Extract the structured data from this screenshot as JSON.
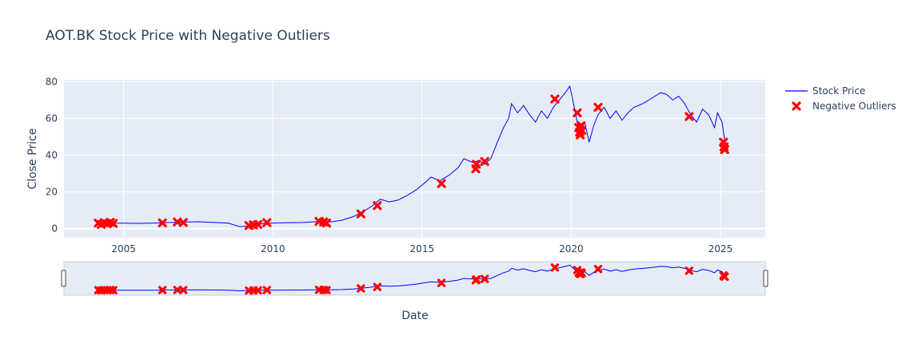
{
  "chart_data": {
    "type": "line",
    "title": "AOT.BK Stock Price with Negative Outliers",
    "xlabel": "Date",
    "ylabel": "Close Price",
    "x_range": [
      2003.0,
      2026.5
    ],
    "ylim": [
      -5,
      81
    ],
    "x_ticks": [
      {
        "value": 2005,
        "label": "2005"
      },
      {
        "value": 2010,
        "label": "2010"
      },
      {
        "value": 2015,
        "label": "2015"
      },
      {
        "value": 2020,
        "label": "2020"
      },
      {
        "value": 2025,
        "label": "2025"
      }
    ],
    "y_ticks": [
      {
        "value": 0,
        "label": "0"
      },
      {
        "value": 20,
        "label": "20"
      },
      {
        "value": 40,
        "label": "40"
      },
      {
        "value": 60,
        "label": "60"
      },
      {
        "value": 80,
        "label": "80"
      }
    ],
    "grid": true,
    "legend_position": "top-right",
    "rangeslider": true,
    "series": [
      {
        "name": "Stock Price",
        "mode": "line",
        "color": "#0000ff",
        "points": [
          [
            2004.1,
            3.2
          ],
          [
            2004.5,
            3.0
          ],
          [
            2005.0,
            2.9
          ],
          [
            2005.5,
            2.8
          ],
          [
            2006.0,
            3.0
          ],
          [
            2006.5,
            3.3
          ],
          [
            2007.0,
            3.5
          ],
          [
            2007.5,
            3.7
          ],
          [
            2008.0,
            3.4
          ],
          [
            2008.5,
            3.0
          ],
          [
            2008.9,
            1.0
          ],
          [
            2009.3,
            1.6
          ],
          [
            2009.7,
            2.8
          ],
          [
            2010.0,
            3.0
          ],
          [
            2010.5,
            3.2
          ],
          [
            2011.0,
            3.3
          ],
          [
            2011.5,
            3.8
          ],
          [
            2011.9,
            3.5
          ],
          [
            2012.3,
            4.5
          ],
          [
            2012.7,
            6.5
          ],
          [
            2013.0,
            9.0
          ],
          [
            2013.3,
            12.0
          ],
          [
            2013.6,
            16.0
          ],
          [
            2013.9,
            14.5
          ],
          [
            2014.2,
            15.5
          ],
          [
            2014.5,
            18.0
          ],
          [
            2014.8,
            21.0
          ],
          [
            2015.1,
            25.0
          ],
          [
            2015.3,
            28.0
          ],
          [
            2015.6,
            26.0
          ],
          [
            2015.9,
            29.0
          ],
          [
            2016.2,
            33.0
          ],
          [
            2016.4,
            38.0
          ],
          [
            2016.7,
            36.0
          ],
          [
            2016.9,
            37.0
          ],
          [
            2017.1,
            35.0
          ],
          [
            2017.3,
            38.0
          ],
          [
            2017.5,
            46.0
          ],
          [
            2017.7,
            54.0
          ],
          [
            2017.9,
            60.0
          ],
          [
            2018.0,
            68.0
          ],
          [
            2018.2,
            63.0
          ],
          [
            2018.4,
            67.0
          ],
          [
            2018.6,
            62.0
          ],
          [
            2018.8,
            58.0
          ],
          [
            2019.0,
            64.0
          ],
          [
            2019.2,
            60.0
          ],
          [
            2019.4,
            66.0
          ],
          [
            2019.6,
            70.0
          ],
          [
            2019.8,
            74.0
          ],
          [
            2019.95,
            77.5
          ],
          [
            2020.05,
            70.0
          ],
          [
            2020.2,
            58.0
          ],
          [
            2020.3,
            52.0
          ],
          [
            2020.45,
            58.0
          ],
          [
            2020.6,
            47.0
          ],
          [
            2020.75,
            56.0
          ],
          [
            2020.9,
            62.0
          ],
          [
            2021.1,
            66.0
          ],
          [
            2021.3,
            60.0
          ],
          [
            2021.5,
            64.0
          ],
          [
            2021.7,
            59.0
          ],
          [
            2021.9,
            63.0
          ],
          [
            2022.1,
            66.0
          ],
          [
            2022.4,
            68.0
          ],
          [
            2022.7,
            71.0
          ],
          [
            2023.0,
            74.0
          ],
          [
            2023.2,
            73.0
          ],
          [
            2023.4,
            70.0
          ],
          [
            2023.6,
            72.0
          ],
          [
            2023.8,
            68.0
          ],
          [
            2024.0,
            62.0
          ],
          [
            2024.2,
            58.0
          ],
          [
            2024.4,
            65.0
          ],
          [
            2024.6,
            62.0
          ],
          [
            2024.8,
            55.0
          ],
          [
            2024.9,
            63.0
          ],
          [
            2025.05,
            58.0
          ],
          [
            2025.15,
            47.0
          ]
        ]
      },
      {
        "name": "Negative Outliers",
        "mode": "markers",
        "marker": "x",
        "color": "#ff0000",
        "points": [
          [
            2004.15,
            3.0
          ],
          [
            2004.25,
            2.2
          ],
          [
            2004.35,
            3.2
          ],
          [
            2004.45,
            2.6
          ],
          [
            2004.55,
            3.4
          ],
          [
            2004.65,
            2.8
          ],
          [
            2006.3,
            3.1
          ],
          [
            2006.8,
            3.6
          ],
          [
            2007.0,
            3.3
          ],
          [
            2009.2,
            1.6
          ],
          [
            2009.35,
            2.0
          ],
          [
            2009.5,
            2.2
          ],
          [
            2009.8,
            3.2
          ],
          [
            2011.55,
            3.9
          ],
          [
            2011.7,
            3.6
          ],
          [
            2011.8,
            3.0
          ],
          [
            2012.95,
            8.0
          ],
          [
            2013.5,
            12.5
          ],
          [
            2015.65,
            24.5
          ],
          [
            2016.8,
            32.5
          ],
          [
            2016.82,
            35.0
          ],
          [
            2017.1,
            36.5
          ],
          [
            2019.45,
            70.5
          ],
          [
            2020.2,
            63.0
          ],
          [
            2020.25,
            55.0
          ],
          [
            2020.28,
            52.5
          ],
          [
            2020.3,
            51.0
          ],
          [
            2020.33,
            56.0
          ],
          [
            2020.35,
            53.5
          ],
          [
            2020.9,
            66.0
          ],
          [
            2023.95,
            61.0
          ],
          [
            2025.1,
            47.0
          ],
          [
            2025.12,
            44.5
          ],
          [
            2025.14,
            43.0
          ]
        ]
      }
    ]
  }
}
